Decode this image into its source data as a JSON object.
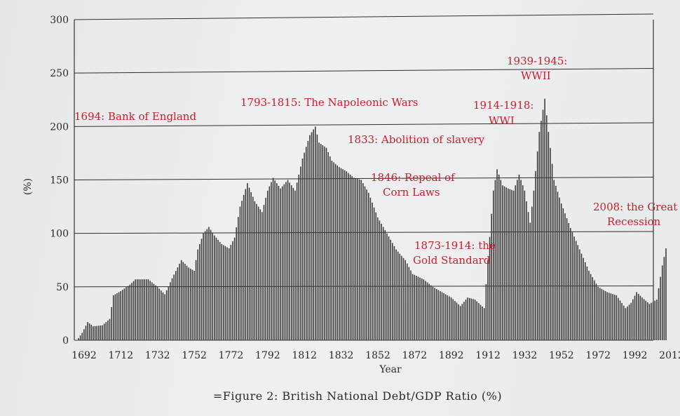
{
  "chart_data": {
    "type": "bar",
    "title": "",
    "caption": "=Figure 2: British National Debt/GDP Ratio (%)",
    "xlabel": "Year",
    "ylabel": "(%)",
    "xlim": [
      1692,
      2012
    ],
    "ylim": [
      0,
      300
    ],
    "yticks": [
      0,
      50,
      100,
      150,
      200,
      250,
      300
    ],
    "xticks": [
      1692,
      1712,
      1732,
      1752,
      1772,
      1792,
      1812,
      1832,
      1852,
      1872,
      1892,
      1912,
      1932,
      1952,
      1972,
      1992,
      2012
    ],
    "grid": true,
    "series": [
      {
        "name": "Debt/GDP ratio (%)",
        "points": [
          [
            1692,
            2
          ],
          [
            1694,
            7
          ],
          [
            1697,
            17
          ],
          [
            1700,
            13
          ],
          [
            1705,
            14
          ],
          [
            1709,
            20
          ],
          [
            1711,
            42
          ],
          [
            1715,
            46
          ],
          [
            1720,
            52
          ],
          [
            1723,
            57
          ],
          [
            1730,
            57
          ],
          [
            1735,
            50
          ],
          [
            1739,
            43
          ],
          [
            1743,
            58
          ],
          [
            1748,
            75
          ],
          [
            1752,
            68
          ],
          [
            1755,
            65
          ],
          [
            1757,
            85
          ],
          [
            1760,
            100
          ],
          [
            1763,
            106
          ],
          [
            1766,
            98
          ],
          [
            1770,
            90
          ],
          [
            1774,
            86
          ],
          [
            1777,
            96
          ],
          [
            1780,
            125
          ],
          [
            1784,
            147
          ],
          [
            1788,
            130
          ],
          [
            1792,
            120
          ],
          [
            1795,
            140
          ],
          [
            1798,
            152
          ],
          [
            1802,
            142
          ],
          [
            1806,
            150
          ],
          [
            1810,
            140
          ],
          [
            1814,
            170
          ],
          [
            1818,
            192
          ],
          [
            1821,
            200
          ],
          [
            1823,
            185
          ],
          [
            1827,
            180
          ],
          [
            1830,
            168
          ],
          [
            1834,
            162
          ],
          [
            1838,
            158
          ],
          [
            1842,
            152
          ],
          [
            1846,
            150
          ],
          [
            1850,
            138
          ],
          [
            1855,
            115
          ],
          [
            1860,
            100
          ],
          [
            1865,
            85
          ],
          [
            1870,
            75
          ],
          [
            1874,
            62
          ],
          [
            1880,
            57
          ],
          [
            1885,
            50
          ],
          [
            1890,
            45
          ],
          [
            1895,
            40
          ],
          [
            1900,
            32
          ],
          [
            1904,
            40
          ],
          [
            1908,
            38
          ],
          [
            1913,
            30
          ],
          [
            1915,
            75
          ],
          [
            1918,
            140
          ],
          [
            1920,
            160
          ],
          [
            1923,
            145
          ],
          [
            1926,
            142
          ],
          [
            1929,
            140
          ],
          [
            1932,
            155
          ],
          [
            1935,
            140
          ],
          [
            1938,
            110
          ],
          [
            1940,
            140
          ],
          [
            1943,
            195
          ],
          [
            1946,
            226
          ],
          [
            1948,
            195
          ],
          [
            1951,
            150
          ],
          [
            1955,
            128
          ],
          [
            1960,
            105
          ],
          [
            1965,
            85
          ],
          [
            1970,
            65
          ],
          [
            1975,
            50
          ],
          [
            1980,
            45
          ],
          [
            1985,
            42
          ],
          [
            1990,
            30
          ],
          [
            1993,
            35
          ],
          [
            1996,
            45
          ],
          [
            1999,
            40
          ],
          [
            2003,
            34
          ],
          [
            2007,
            38
          ],
          [
            2010,
            70
          ],
          [
            2012,
            86
          ]
        ]
      }
    ],
    "annotations": [
      {
        "text": "1694: Bank of England"
      },
      {
        "text": "1793-1815:  The Napoleonic Wars"
      },
      {
        "text": "1833: Abolition of slavery"
      },
      {
        "text": "1846: Repeal of"
      },
      {
        "text": "Corn Laws"
      },
      {
        "text": "1873-1914: the"
      },
      {
        "text": "Gold Standard"
      },
      {
        "text": "1914-1918:"
      },
      {
        "text": "WWI"
      },
      {
        "text": "1939-1945:"
      },
      {
        "text": "WWII"
      },
      {
        "text": "2008: the Great"
      },
      {
        "text": "Recession"
      }
    ]
  }
}
